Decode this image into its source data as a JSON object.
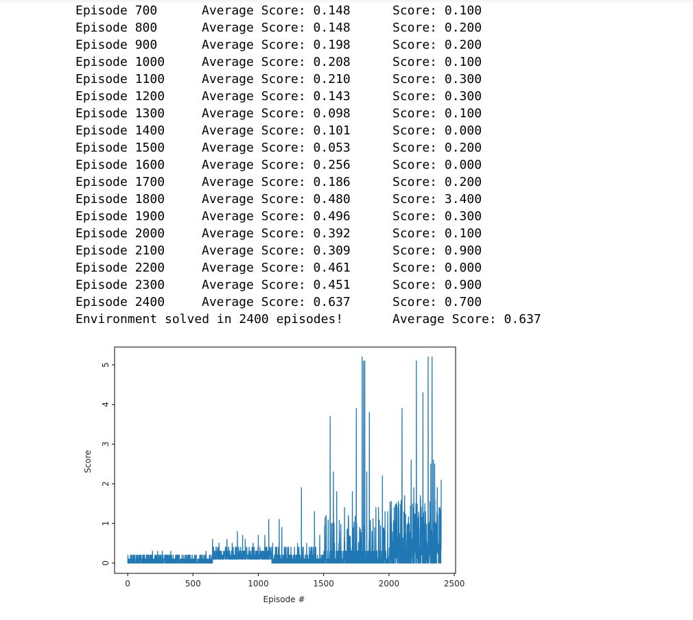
{
  "log": {
    "rows": [
      {
        "episode": "Episode 700",
        "avg": "Average Score: 0.148",
        "score": "Score: 0.100"
      },
      {
        "episode": "Episode 800",
        "avg": "Average Score: 0.148",
        "score": "Score: 0.200"
      },
      {
        "episode": "Episode 900",
        "avg": "Average Score: 0.198",
        "score": "Score: 0.200"
      },
      {
        "episode": "Episode 1000",
        "avg": "Average Score: 0.208",
        "score": "Score: 0.100"
      },
      {
        "episode": "Episode 1100",
        "avg": "Average Score: 0.210",
        "score": "Score: 0.300"
      },
      {
        "episode": "Episode 1200",
        "avg": "Average Score: 0.143",
        "score": "Score: 0.300"
      },
      {
        "episode": "Episode 1300",
        "avg": "Average Score: 0.098",
        "score": "Score: 0.100"
      },
      {
        "episode": "Episode 1400",
        "avg": "Average Score: 0.101",
        "score": "Score: 0.000"
      },
      {
        "episode": "Episode 1500",
        "avg": "Average Score: 0.053",
        "score": "Score: 0.200"
      },
      {
        "episode": "Episode 1600",
        "avg": "Average Score: 0.256",
        "score": "Score: 0.000"
      },
      {
        "episode": "Episode 1700",
        "avg": "Average Score: 0.186",
        "score": "Score: 0.200"
      },
      {
        "episode": "Episode 1800",
        "avg": "Average Score: 0.480",
        "score": "Score: 3.400"
      },
      {
        "episode": "Episode 1900",
        "avg": "Average Score: 0.496",
        "score": "Score: 0.300"
      },
      {
        "episode": "Episode 2000",
        "avg": "Average Score: 0.392",
        "score": "Score: 0.100"
      },
      {
        "episode": "Episode 2100",
        "avg": "Average Score: 0.309",
        "score": "Score: 0.900"
      },
      {
        "episode": "Episode 2200",
        "avg": "Average Score: 0.461",
        "score": "Score: 0.000"
      },
      {
        "episode": "Episode 2300",
        "avg": "Average Score: 0.451",
        "score": "Score: 0.900"
      },
      {
        "episode": "Episode 2400",
        "avg": "Average Score: 0.637",
        "score": "Score: 0.700"
      }
    ],
    "final_message": "Environment solved in 2400 episodes!",
    "final_avg": "Average Score: 0.637"
  },
  "chart_data": {
    "type": "line",
    "xlabel": "Episode #",
    "ylabel": "Score",
    "xlim": [
      -100,
      2510
    ],
    "ylim": [
      -0.26,
      5.45
    ],
    "xticks": [
      0,
      500,
      1000,
      1500,
      2000,
      2500
    ],
    "xtick_labels": [
      "0",
      "500",
      "1000",
      "1500",
      "2000",
      "2500"
    ],
    "yticks": [
      0,
      1,
      2,
      3,
      4,
      5
    ],
    "ytick_labels": [
      "0",
      "1",
      "2",
      "3",
      "4",
      "5"
    ],
    "line_color": "#1f77b4",
    "grid": false,
    "n_points": 2400,
    "peaks": [
      [
        8,
        0.1
      ],
      [
        50,
        0.1
      ],
      [
        100,
        0.1
      ],
      [
        115,
        0.2
      ],
      [
        170,
        0.2
      ],
      [
        190,
        0.3
      ],
      [
        230,
        0.3
      ],
      [
        250,
        0.2
      ],
      [
        265,
        0.3
      ],
      [
        300,
        0.2
      ],
      [
        330,
        0.3
      ],
      [
        380,
        0.2
      ],
      [
        430,
        0.2
      ],
      [
        520,
        0.2
      ],
      [
        600,
        0.3
      ],
      [
        640,
        0.2
      ],
      [
        650,
        0.6
      ],
      [
        700,
        0.5
      ],
      [
        760,
        0.6
      ],
      [
        800,
        0.5
      ],
      [
        840,
        0.8
      ],
      [
        880,
        0.7
      ],
      [
        900,
        0.6
      ],
      [
        960,
        0.5
      ],
      [
        1000,
        0.7
      ],
      [
        1050,
        0.7
      ],
      [
        1080,
        1.1
      ],
      [
        1110,
        0.5
      ],
      [
        1160,
        1.1
      ],
      [
        1180,
        0.9
      ],
      [
        1250,
        0.4
      ],
      [
        1300,
        0.5
      ],
      [
        1330,
        1.9
      ],
      [
        1370,
        0.5
      ],
      [
        1400,
        0.3
      ],
      [
        1430,
        1.3
      ],
      [
        1470,
        0.7
      ],
      [
        1520,
        1.2
      ],
      [
        1550,
        3.7
      ],
      [
        1560,
        1.0
      ],
      [
        1575,
        2.3
      ],
      [
        1600,
        1.8
      ],
      [
        1630,
        0.8
      ],
      [
        1660,
        1.4
      ],
      [
        1690,
        1.2
      ],
      [
        1720,
        1.8
      ],
      [
        1750,
        3.9
      ],
      [
        1775,
        0.9
      ],
      [
        1795,
        5.2
      ],
      [
        1805,
        5.1
      ],
      [
        1815,
        5.1
      ],
      [
        1830,
        2.3
      ],
      [
        1850,
        3.8
      ],
      [
        1870,
        0.8
      ],
      [
        1900,
        1.4
      ],
      [
        1920,
        1.4
      ],
      [
        1950,
        2.2
      ],
      [
        1970,
        1.3
      ],
      [
        1990,
        1.3
      ],
      [
        2010,
        1.0
      ],
      [
        2040,
        1.4
      ],
      [
        2070,
        1.4
      ],
      [
        2100,
        3.9
      ],
      [
        2120,
        1.7
      ],
      [
        2150,
        1.1
      ],
      [
        2170,
        2.6
      ],
      [
        2190,
        1.9
      ],
      [
        2210,
        5.1
      ],
      [
        2240,
        1.7
      ],
      [
        2260,
        4.3
      ],
      [
        2280,
        1.3
      ],
      [
        2300,
        5.2
      ],
      [
        2320,
        2.5
      ],
      [
        2330,
        5.2
      ],
      [
        2340,
        2.6
      ],
      [
        2350,
        2.5
      ],
      [
        2370,
        1.9
      ],
      [
        2390,
        1.4
      ],
      [
        2400,
        2.1
      ]
    ]
  }
}
